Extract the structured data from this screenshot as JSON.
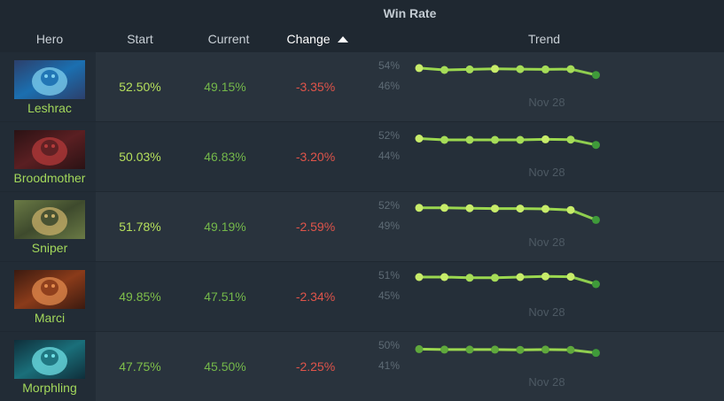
{
  "table": {
    "group_header": "Win Rate",
    "columns": {
      "hero": "Hero",
      "start": "Start",
      "current": "Current",
      "change": "Change",
      "trend": "Trend"
    },
    "sorted_column": "change",
    "trend_date_label": "Nov 28",
    "rows": [
      {
        "hero": "Leshrac",
        "portrait": "leshrac-portrait",
        "start": "52.50%",
        "current": "49.15%",
        "change": "-3.35%",
        "trend_high": "54%",
        "trend_low": "46%",
        "trend_values": [
          53.7,
          53.0,
          53.2,
          53.4,
          53.3,
          53.2,
          53.3,
          51.1
        ],
        "trend_range": [
          46,
          54
        ],
        "colors": [
          "#1b6fb0",
          "#7fd0ef",
          "#2c3f6b"
        ]
      },
      {
        "hero": "Broodmother",
        "portrait": "broodmother-portrait",
        "start": "50.03%",
        "current": "46.83%",
        "change": "-3.20%",
        "trend_high": "52%",
        "trend_low": "44%",
        "trend_values": [
          51.5,
          51.0,
          51.0,
          51.0,
          51.0,
          51.2,
          51.1,
          49.1
        ],
        "trend_range": [
          44,
          52
        ],
        "colors": [
          "#5a1f22",
          "#b43a3a",
          "#2a1214"
        ]
      },
      {
        "hero": "Sniper",
        "portrait": "sniper-portrait",
        "start": "51.78%",
        "current": "49.19%",
        "change": "-2.59%",
        "trend_high": "52%",
        "trend_low": "49%",
        "trend_values": [
          51.9,
          51.9,
          51.85,
          51.8,
          51.8,
          51.75,
          51.6,
          50.2
        ],
        "trend_range": [
          49,
          52
        ],
        "colors": [
          "#3e4a2d",
          "#c9b06a",
          "#6a7a45"
        ]
      },
      {
        "hero": "Marci",
        "portrait": "marci-portrait",
        "start": "49.85%",
        "current": "47.51%",
        "change": "-2.34%",
        "trend_high": "51%",
        "trend_low": "45%",
        "trend_values": [
          51.0,
          51.0,
          50.8,
          50.8,
          51.0,
          51.2,
          51.1,
          49.0
        ],
        "trend_range": [
          45,
          51
        ],
        "colors": [
          "#8a3b1a",
          "#e38b4d",
          "#3b1a10"
        ]
      },
      {
        "hero": "Morphling",
        "portrait": "morphling-portrait",
        "start": "47.75%",
        "current": "45.50%",
        "change": "-2.25%",
        "trend_high": "50%",
        "trend_low": "41%",
        "trend_values": [
          49.1,
          48.9,
          48.9,
          48.9,
          48.8,
          48.9,
          48.8,
          47.5
        ],
        "trend_range": [
          41,
          50
        ],
        "colors": [
          "#1a6f7a",
          "#6fe0e6",
          "#0f2e3a"
        ]
      }
    ]
  }
}
